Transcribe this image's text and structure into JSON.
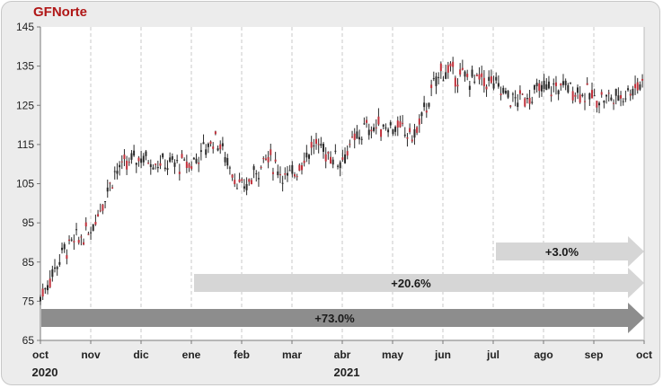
{
  "chart_data": {
    "type": "candlestick",
    "title": "GFNorte",
    "ylim": [
      65,
      145
    ],
    "y_ticks": [
      "145",
      "135",
      "125",
      "115",
      "105",
      "95",
      "85",
      "75",
      "65"
    ],
    "x_month_labels": [
      "oct",
      "nov",
      "dic",
      "ene",
      "feb",
      "mar",
      "abr",
      "may",
      "jun",
      "jul",
      "ago",
      "sep",
      "oct"
    ],
    "x_year_labels": [
      {
        "label": "2020",
        "month_index": 0
      },
      {
        "label": "2021",
        "month_index": 6
      }
    ],
    "grid": "vertical",
    "series": [
      {
        "x": [
          "2020-10-01",
          "2020-10-15",
          "2020-10-31",
          "2020-11-15",
          "2020-11-30",
          "2020-12-15",
          "2020-12-31",
          "2021-01-15",
          "2021-01-31",
          "2021-02-15",
          "2021-02-28",
          "2021-03-15",
          "2021-03-31",
          "2021-04-15",
          "2021-04-30",
          "2021-05-15",
          "2021-05-31",
          "2021-06-15",
          "2021-06-30",
          "2021-07-15",
          "2021-07-31",
          "2021-08-15",
          "2021-08-31",
          "2021-09-15",
          "2021-09-30"
        ],
        "values": [
          76,
          88,
          93,
          108,
          112,
          110,
          110,
          117,
          103,
          112,
          106,
          115,
          111,
          119,
          120,
          117,
          134,
          132,
          131,
          126,
          129,
          130,
          127,
          127,
          131
        ]
      }
    ],
    "annotations": [
      {
        "text": "+3.0%",
        "start_month": 9,
        "end_month": 12,
        "color": "#d6d6d6"
      },
      {
        "text": "+20.6%",
        "start_month": 3,
        "end_month": 12,
        "color": "#d6d6d6"
      },
      {
        "text": "+73.0%",
        "start_month": 0,
        "end_month": 12,
        "color": "#8d8d8d"
      }
    ]
  }
}
